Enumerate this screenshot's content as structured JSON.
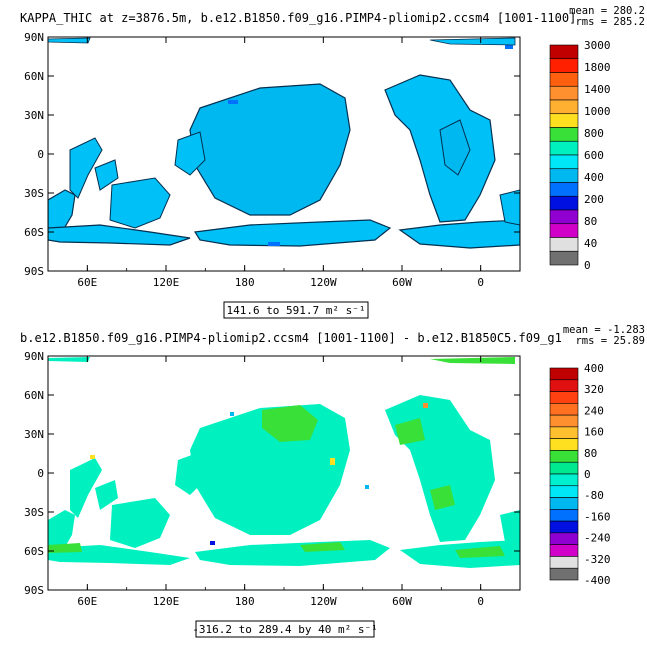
{
  "panels": [
    {
      "title": "KAPPA_THIC at z=3876.5m, b.e12.B1850.f09_g16.PIMP4-pliomip2.ccsm4 [1001-1100]",
      "mean_label": "mean = 280.2",
      "rms_label": "rms = 285.2",
      "range_label": "141.6 to 591.7 m² s⁻¹"
    },
    {
      "title": "b.e12.B1850.f09_g16.PIMP4-pliomip2.ccsm4 [1001-1100] - b.e12.B1850C5.f09_g1",
      "mean_label": "mean = -1.283",
      "rms_label": "rms = 25.89",
      "range_label": "-316.2 to 289.4 by 40 m² s⁻¹"
    }
  ],
  "chart_data": [
    {
      "type": "heatmap",
      "title": "KAPPA_THIC at z=3876.5m, b.e12.B1850.f09_g16.PIMP4-pliomip2.ccsm4 [1001-1100]",
      "map_projection": "cylindrical equidistant, longitude 30E–390E",
      "x_ticks": [
        "60E",
        "120E",
        "180",
        "120W",
        "60W",
        "0"
      ],
      "y_ticks": [
        "90N",
        "60N",
        "30N",
        "0",
        "30S",
        "60S",
        "90S"
      ],
      "colorbar_levels": [
        "3000",
        "1800",
        "1400",
        "1000",
        "800",
        "600",
        "400",
        "200",
        "80",
        "40",
        "0"
      ],
      "colorbar_colors": [
        "#c00000",
        "#ff2000",
        "#ff6010",
        "#ff9030",
        "#ffb030",
        "#ffe020",
        "#38e038",
        "#00f0c0",
        "#00e8f8",
        "#00b8f0",
        "#0070ff",
        "#0010e0",
        "#9000d0",
        "#d000c8",
        "#e0e0e0",
        "#707070"
      ],
      "dominant_value_range": [
        200,
        400
      ],
      "min": 141.6,
      "max": 591.7,
      "mean": 280.2,
      "rms": 285.2,
      "units": "m² s⁻¹"
    },
    {
      "type": "heatmap",
      "title": "b.e12.B1850.f09_g16.PIMP4-pliomip2.ccsm4 [1001-1100] - b.e12.B1850C5.f09_g1",
      "map_projection": "cylindrical equidistant, longitude 30E–390E",
      "x_ticks": [
        "60E",
        "120E",
        "180",
        "120W",
        "60W",
        "0"
      ],
      "y_ticks": [
        "90N",
        "60N",
        "30N",
        "0",
        "30S",
        "60S",
        "90S"
      ],
      "colorbar_levels": [
        "400",
        "320",
        "240",
        "160",
        "80",
        "0",
        "-80",
        "-160",
        "-240",
        "-320",
        "-400"
      ],
      "colorbar_colors": [
        "#c00000",
        "#e01010",
        "#ff4010",
        "#ff7020",
        "#ff9030",
        "#ffc030",
        "#ffe020",
        "#38e038",
        "#00e890",
        "#00f0d0",
        "#00e8f8",
        "#00b8f0",
        "#0070ff",
        "#0010e0",
        "#9000d0",
        "#d000c8",
        "#e0e0e0",
        "#707070"
      ],
      "dominant_value_range": [
        -40,
        40
      ],
      "min": -316.2,
      "max": 289.4,
      "contour_interval": 40,
      "mean": -1.283,
      "rms": 25.89,
      "units": "m² s⁻¹"
    }
  ]
}
